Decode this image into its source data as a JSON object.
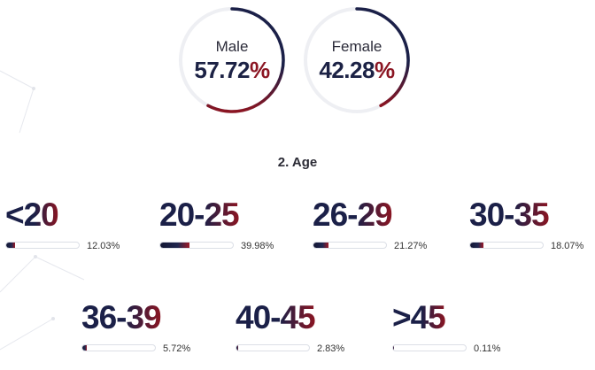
{
  "gender": [
    {
      "label": "Male",
      "value": "57.72",
      "unit": "%",
      "fraction": 0.5772
    },
    {
      "label": "Female",
      "value": "42.28",
      "unit": "%",
      "fraction": 0.4228
    }
  ],
  "section_title": "2. Age",
  "chart_data": {
    "type": "bar",
    "title": "2. Age",
    "categories": [
      "<20",
      "20-25",
      "26-29",
      "30-35",
      "36-39",
      "40-45",
      ">45"
    ],
    "values": [
      12.03,
      39.98,
      21.27,
      18.07,
      5.72,
      2.83,
      0.11
    ],
    "value_labels": [
      "12.03%",
      "39.98%",
      "21.27%",
      "18.07%",
      "5.72%",
      "2.83%",
      "0.11%"
    ],
    "unit": "%",
    "ylim": [
      0,
      100
    ]
  },
  "colors": {
    "navy": "#1b2048",
    "crimson": "#8b1522",
    "track": "#dcdfe6"
  }
}
